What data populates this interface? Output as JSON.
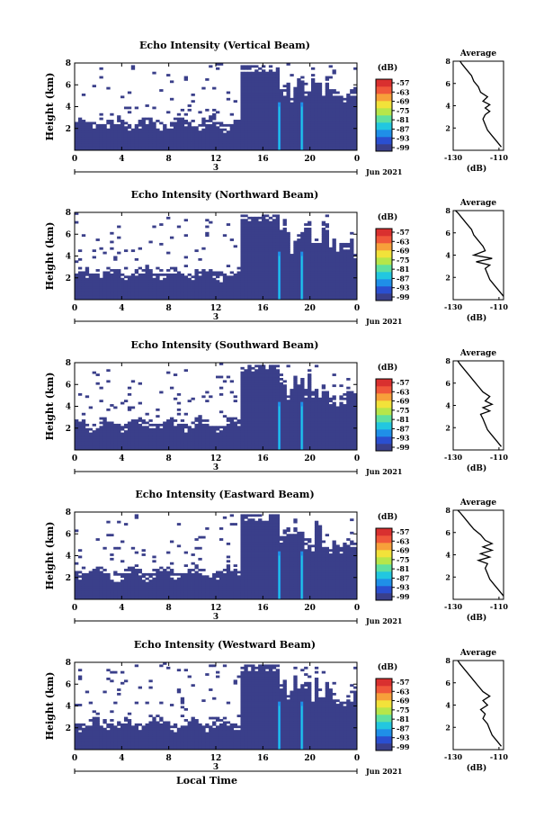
{
  "chart_data": [
    {
      "type": "heatmap",
      "title": "Echo Intensity (Vertical Beam)",
      "ylabel": "Height (km)",
      "xticks": [
        "0",
        "4",
        "8",
        "12",
        "16",
        "20",
        "0"
      ],
      "yticks": [
        "2",
        "4",
        "6",
        "8"
      ],
      "day_label": "3",
      "date_label": "Jun 2021",
      "colorbar": {
        "unit": "(dB)",
        "ticks": [
          "-57",
          "-63",
          "-69",
          "-75",
          "-81",
          "-87",
          "-93",
          "-99"
        ],
        "range": [
          -99,
          -57
        ]
      },
      "average": {
        "title": "Average",
        "xlabel": "(dB)",
        "xticks": [
          "-130",
          "-110"
        ],
        "xlim": [
          -130,
          -108
        ],
        "ylim": [
          0,
          8
        ],
        "yticks": [
          "2",
          "4",
          "6",
          "8"
        ],
        "profile": [
          [
            -109,
            0.3
          ],
          [
            -111,
            0.8
          ],
          [
            -113,
            1.3
          ],
          [
            -115,
            1.8
          ],
          [
            -116,
            2.3
          ],
          [
            -117,
            2.8
          ],
          [
            -116,
            3.2
          ],
          [
            -114,
            3.5
          ],
          [
            -116,
            3.8
          ],
          [
            -114,
            4.1
          ],
          [
            -117,
            4.4
          ],
          [
            -115,
            4.8
          ],
          [
            -118,
            5.2
          ],
          [
            -119,
            5.7
          ],
          [
            -121,
            6.2
          ],
          [
            -122,
            6.7
          ],
          [
            -124,
            7.2
          ],
          [
            -126,
            7.7
          ],
          [
            -127,
            8.0
          ]
        ]
      }
    },
    {
      "type": "heatmap",
      "title": "Echo Intensity (Northward Beam)",
      "ylabel": "Height (km)",
      "xticks": [
        "0",
        "4",
        "8",
        "12",
        "16",
        "20",
        "0"
      ],
      "yticks": [
        "2",
        "4",
        "6",
        "8"
      ],
      "day_label": "3",
      "date_label": "Jun 2021",
      "colorbar": {
        "unit": "(dB)",
        "ticks": [
          "-57",
          "-63",
          "-69",
          "-75",
          "-81",
          "-87",
          "-93",
          "-99"
        ],
        "range": [
          -99,
          -57
        ]
      },
      "average": {
        "title": "Average",
        "xlabel": "(dB)",
        "xticks": [
          "-130",
          "-110"
        ],
        "xlim": [
          -130,
          -108
        ],
        "ylim": [
          0,
          8
        ],
        "yticks": [
          "2",
          "4",
          "6",
          "8"
        ],
        "profile": [
          [
            -108,
            0.3
          ],
          [
            -110,
            0.8
          ],
          [
            -112,
            1.3
          ],
          [
            -114,
            1.8
          ],
          [
            -115,
            2.3
          ],
          [
            -116,
            2.8
          ],
          [
            -114,
            3.1
          ],
          [
            -120,
            3.4
          ],
          [
            -113,
            3.7
          ],
          [
            -121,
            4.0
          ],
          [
            -116,
            4.4
          ],
          [
            -117,
            4.8
          ],
          [
            -119,
            5.3
          ],
          [
            -121,
            5.8
          ],
          [
            -122,
            6.3
          ],
          [
            -124,
            6.8
          ],
          [
            -126,
            7.3
          ],
          [
            -128,
            7.8
          ],
          [
            -129,
            8.0
          ]
        ]
      }
    },
    {
      "type": "heatmap",
      "title": "Echo Intensity (Southward Beam)",
      "ylabel": "Height (km)",
      "xticks": [
        "0",
        "4",
        "8",
        "12",
        "16",
        "20",
        "0"
      ],
      "yticks": [
        "2",
        "4",
        "6",
        "8"
      ],
      "day_label": "3",
      "date_label": "Jun 2021",
      "colorbar": {
        "unit": "(dB)",
        "ticks": [
          "-57",
          "-63",
          "-69",
          "-75",
          "-81",
          "-87",
          "-93",
          "-99"
        ],
        "range": [
          -99,
          -57
        ]
      },
      "average": {
        "title": "Average",
        "xlabel": "(dB)",
        "xticks": [
          "-130",
          "-110"
        ],
        "xlim": [
          -130,
          -108
        ],
        "ylim": [
          0,
          8
        ],
        "yticks": [
          "2",
          "4",
          "6",
          "8"
        ],
        "profile": [
          [
            -109,
            0.3
          ],
          [
            -111,
            0.8
          ],
          [
            -113,
            1.3
          ],
          [
            -115,
            1.8
          ],
          [
            -116,
            2.3
          ],
          [
            -117,
            2.8
          ],
          [
            -118,
            3.2
          ],
          [
            -114,
            3.5
          ],
          [
            -117,
            3.8
          ],
          [
            -113,
            4.1
          ],
          [
            -116,
            4.4
          ],
          [
            -114,
            4.8
          ],
          [
            -117,
            5.2
          ],
          [
            -119,
            5.7
          ],
          [
            -121,
            6.2
          ],
          [
            -123,
            6.7
          ],
          [
            -125,
            7.2
          ],
          [
            -127,
            7.7
          ],
          [
            -128,
            8.0
          ]
        ]
      }
    },
    {
      "type": "heatmap",
      "title": "Echo Intensity (Eastward Beam)",
      "ylabel": "Height (km)",
      "xticks": [
        "0",
        "4",
        "8",
        "12",
        "16",
        "20",
        "0"
      ],
      "yticks": [
        "2",
        "4",
        "6",
        "8"
      ],
      "day_label": "3",
      "date_label": "Jun 2021",
      "colorbar": {
        "unit": "(dB)",
        "ticks": [
          "-57",
          "-63",
          "-69",
          "-75",
          "-81",
          "-87",
          "-93",
          "-99"
        ],
        "range": [
          -99,
          -57
        ]
      },
      "average": {
        "title": "Average",
        "xlabel": "(dB)",
        "xticks": [
          "-130",
          "-110"
        ],
        "xlim": [
          -130,
          -108
        ],
        "ylim": [
          0,
          8
        ],
        "yticks": [
          "2",
          "4",
          "6",
          "8"
        ],
        "profile": [
          [
            -108,
            0.3
          ],
          [
            -110,
            0.8
          ],
          [
            -112,
            1.3
          ],
          [
            -114,
            1.8
          ],
          [
            -115,
            2.3
          ],
          [
            -116,
            2.8
          ],
          [
            -115,
            3.2
          ],
          [
            -119,
            3.5
          ],
          [
            -114,
            3.8
          ],
          [
            -118,
            4.1
          ],
          [
            -113,
            4.4
          ],
          [
            -117,
            4.7
          ],
          [
            -113,
            5.0
          ],
          [
            -116,
            5.3
          ],
          [
            -118,
            5.8
          ],
          [
            -121,
            6.3
          ],
          [
            -123,
            6.8
          ],
          [
            -125,
            7.3
          ],
          [
            -127,
            7.8
          ],
          [
            -128,
            8.0
          ]
        ]
      }
    },
    {
      "type": "heatmap",
      "title": "Echo Intensity (Westward Beam)",
      "ylabel": "Height (km)",
      "xlabel": "Local Time",
      "xticks": [
        "0",
        "4",
        "8",
        "12",
        "16",
        "20",
        "0"
      ],
      "yticks": [
        "2",
        "4",
        "6",
        "8"
      ],
      "day_label": "3",
      "date_label": "Jun 2021",
      "colorbar": {
        "unit": "(dB)",
        "ticks": [
          "-57",
          "-63",
          "-69",
          "-75",
          "-81",
          "-87",
          "-93",
          "-99"
        ],
        "range": [
          -99,
          -57
        ]
      },
      "average": {
        "title": "Average",
        "xlabel": "(dB)",
        "xticks": [
          "-130",
          "-110"
        ],
        "xlim": [
          -130,
          -108
        ],
        "ylim": [
          0,
          8
        ],
        "yticks": [
          "2",
          "4",
          "6",
          "8"
        ],
        "profile": [
          [
            -109,
            0.3
          ],
          [
            -111,
            0.8
          ],
          [
            -113,
            1.3
          ],
          [
            -114,
            1.8
          ],
          [
            -115,
            2.3
          ],
          [
            -117,
            2.8
          ],
          [
            -116,
            3.2
          ],
          [
            -118,
            3.6
          ],
          [
            -115,
            4.0
          ],
          [
            -117,
            4.4
          ],
          [
            -114,
            4.8
          ],
          [
            -117,
            5.2
          ],
          [
            -119,
            5.7
          ],
          [
            -121,
            6.2
          ],
          [
            -123,
            6.7
          ],
          [
            -125,
            7.2
          ],
          [
            -127,
            7.7
          ],
          [
            -128,
            8.0
          ]
        ]
      }
    }
  ],
  "colors": {
    "field": "#3a3f8a",
    "scale": [
      "#3a3f8a",
      "#2a4fd0",
      "#1f8fe8",
      "#22c7e0",
      "#5fe0a0",
      "#b6e64a",
      "#f2e23a",
      "#f7a03a",
      "#f0583a",
      "#d9302f"
    ]
  }
}
